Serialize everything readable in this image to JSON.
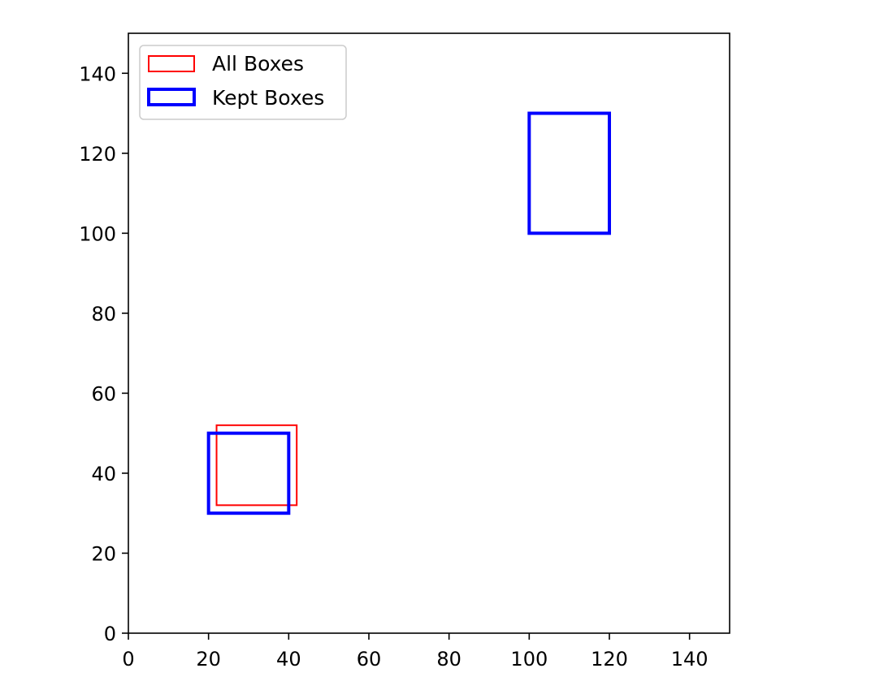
{
  "chart_data": {
    "type": "rectangles",
    "title": "",
    "xlabel": "",
    "ylabel": "",
    "xlim": [
      0,
      150
    ],
    "ylim": [
      0,
      150
    ],
    "x_ticks": [
      0,
      20,
      40,
      60,
      80,
      100,
      120,
      140
    ],
    "y_ticks": [
      0,
      20,
      40,
      60,
      80,
      100,
      120,
      140
    ],
    "grid": false,
    "legend_position": "top-left",
    "series": [
      {
        "name": "All Boxes",
        "color": "#ff0000",
        "line_style": "thin",
        "boxes": [
          {
            "x1": 22,
            "y1": 32,
            "x2": 42,
            "y2": 52
          },
          {
            "x1": 20,
            "y1": 30,
            "x2": 40,
            "y2": 50
          },
          {
            "x1": 100,
            "y1": 100,
            "x2": 120,
            "y2": 130
          }
        ]
      },
      {
        "name": "Kept Boxes",
        "color": "#0000ff",
        "line_style": "thick",
        "boxes": [
          {
            "x1": 20,
            "y1": 30,
            "x2": 40,
            "y2": 50
          },
          {
            "x1": 100,
            "y1": 100,
            "x2": 120,
            "y2": 130
          }
        ]
      }
    ]
  }
}
